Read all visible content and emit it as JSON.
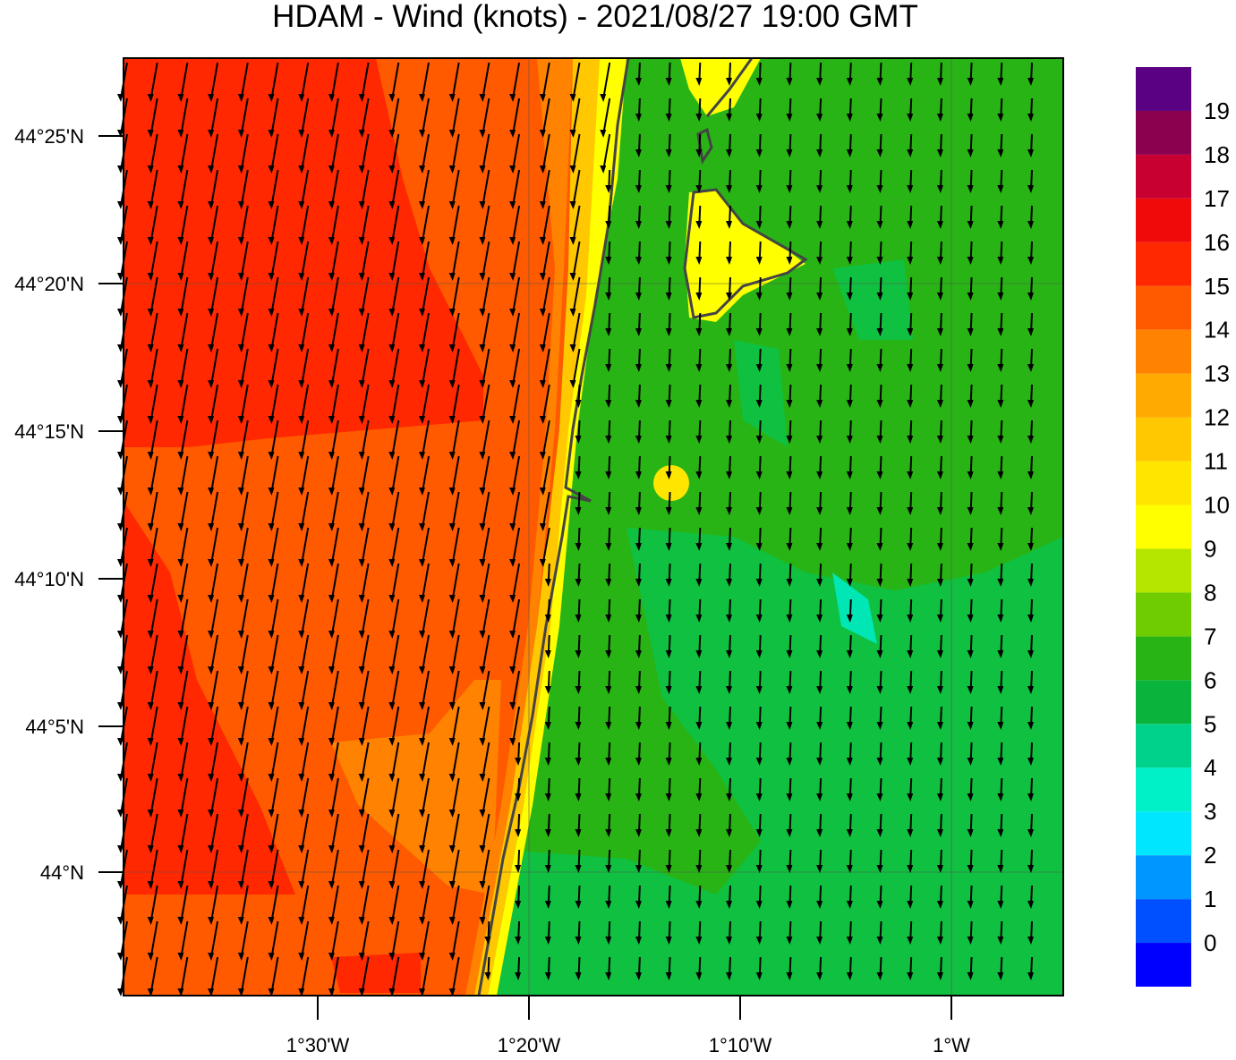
{
  "title": "HDAM - Wind (knots)  -  2021/08/27  19:00 GMT",
  "lat_ticks": [
    "44°25'N",
    "44°20'N",
    "44°15'N",
    "44°10'N",
    "44°5'N",
    "44°N"
  ],
  "lon_ticks": [
    "1°30'W",
    "1°20'W",
    "1°10'W",
    "1°W"
  ],
  "colorbar": {
    "labels": [
      "0",
      "1",
      "2",
      "3",
      "4",
      "5",
      "6",
      "7",
      "8",
      "9",
      "10",
      "11",
      "12",
      "13",
      "14",
      "15",
      "16",
      "17",
      "18",
      "19"
    ],
    "colors": [
      "#0000ff",
      "#0050ff",
      "#0096ff",
      "#00e6ff",
      "#00f0c8",
      "#00d28c",
      "#0ab43c",
      "#28b414",
      "#6ecc00",
      "#b4e600",
      "#ffff00",
      "#ffe600",
      "#ffc800",
      "#ffaa00",
      "#ff8200",
      "#ff5a00",
      "#ff2800",
      "#f00a0a",
      "#c80032",
      "#8c0050",
      "#5a0082"
    ]
  }
}
